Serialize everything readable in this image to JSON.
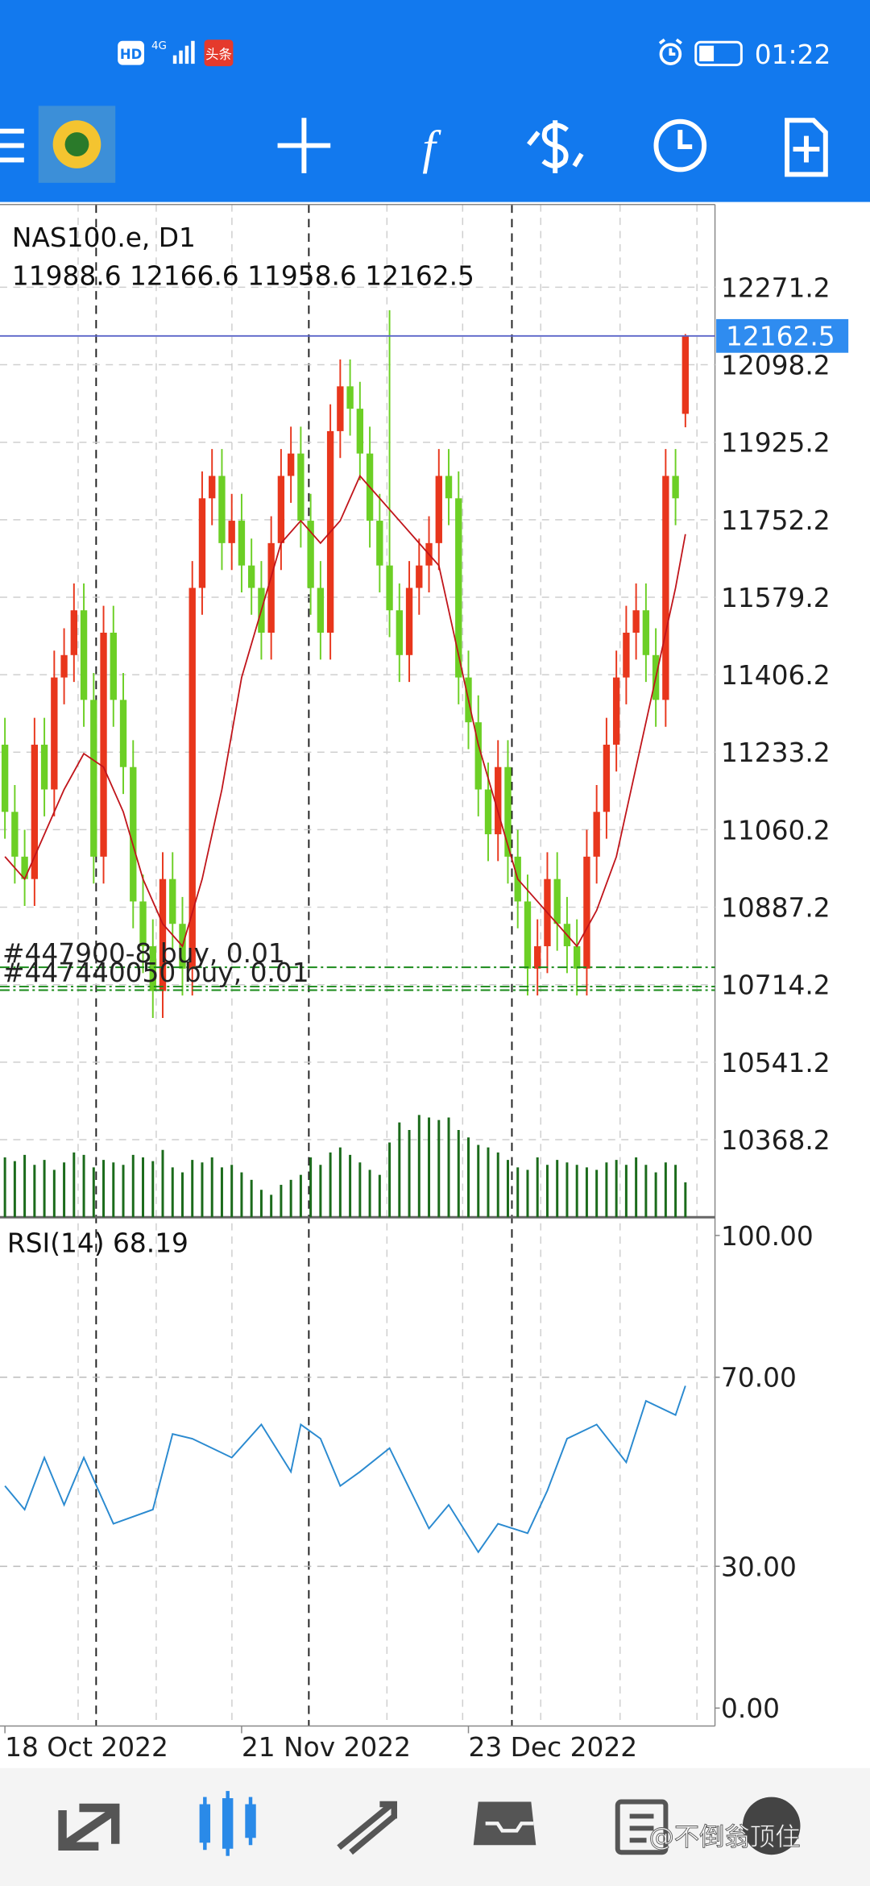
{
  "status_bar": {
    "hd": "HD",
    "network": "4G",
    "badge": "头条",
    "time": "01:22"
  },
  "chart_data": [
    {
      "type": "candlestick",
      "title": "NAS100.e, D1",
      "xlim": [
        -0.5,
        72
      ],
      "xticks": [
        {
          "value": 0,
          "label": "18 Oct 2022"
        },
        {
          "value": 24,
          "label": "21 Nov 2022"
        },
        {
          "value": 47,
          "label": "23 Dec 2022"
        }
      ],
      "ylim": [
        10195,
        12456
      ],
      "yticks": [
        12271.2,
        12098.2,
        11925.2,
        11752.2,
        11579.2,
        11406.2,
        11233.2,
        11060.2,
        10887.2,
        10714.2,
        10541.2,
        10368.2
      ],
      "grid": true,
      "up_color": "#e8361c",
      "down_color": "#6ccf25",
      "open": [
        11250,
        11100,
        11000,
        10950,
        11250,
        11150,
        11400,
        11450,
        11550,
        11350,
        11000,
        11500,
        11350,
        11200,
        10900,
        10800,
        10700,
        10950,
        10850,
        10750,
        11600,
        11800,
        11850,
        11700,
        11750,
        11650,
        11600,
        11500,
        11700,
        11850,
        11900,
        11750,
        11600,
        11500,
        11950,
        12050,
        12000,
        11900,
        11750,
        11650,
        11550,
        11450,
        11600,
        11650,
        11700,
        11850,
        11800,
        11400,
        11300,
        11150,
        11050,
        11200,
        11000,
        10900,
        10750,
        10800,
        10950,
        10850,
        10800,
        10750,
        11000,
        11100,
        11250,
        11400,
        11500,
        11550,
        11450,
        11350,
        11850,
        11988.6
      ],
      "high": [
        11310,
        11160,
        11060,
        11310,
        11310,
        11460,
        11510,
        11610,
        11610,
        11410,
        11560,
        11560,
        11410,
        11260,
        10960,
        10860,
        11010,
        11010,
        10910,
        11660,
        11860,
        11910,
        11910,
        11810,
        11810,
        11710,
        11660,
        11760,
        11910,
        11960,
        11960,
        11810,
        11660,
        12010,
        12110,
        12110,
        12060,
        11960,
        11810,
        12220,
        11610,
        11660,
        11710,
        11760,
        11910,
        11910,
        11860,
        11460,
        11360,
        11210,
        11260,
        11260,
        11060,
        10960,
        10860,
        11010,
        11010,
        10910,
        10860,
        11060,
        11160,
        11310,
        11460,
        11560,
        11610,
        11610,
        11510,
        11910,
        11910,
        12166.6
      ],
      "low": [
        11040,
        10940,
        10890,
        10890,
        11090,
        11090,
        11340,
        11390,
        11290,
        10940,
        10940,
        11290,
        11140,
        10840,
        10740,
        10640,
        10640,
        10790,
        10690,
        10690,
        11540,
        11740,
        11640,
        11640,
        11590,
        11540,
        11440,
        11440,
        11640,
        11790,
        11690,
        11540,
        11440,
        11440,
        11890,
        11940,
        11840,
        11690,
        11590,
        11490,
        11390,
        11390,
        11540,
        11590,
        11640,
        11740,
        11340,
        11240,
        11090,
        10990,
        10990,
        10940,
        10840,
        10690,
        10690,
        10740,
        10790,
        10740,
        10690,
        10690,
        10940,
        11040,
        11190,
        11340,
        11440,
        11390,
        11290,
        11290,
        11740,
        11958.6
      ],
      "close": [
        11100,
        11000,
        10950,
        11250,
        11150,
        11400,
        11450,
        11550,
        11350,
        11000,
        11500,
        11350,
        11200,
        10900,
        10800,
        10700,
        10950,
        10850,
        10750,
        11600,
        11800,
        11850,
        11700,
        11750,
        11650,
        11600,
        11500,
        11700,
        11850,
        11900,
        11750,
        11600,
        11500,
        11950,
        12050,
        12000,
        11900,
        11750,
        11650,
        11550,
        11450,
        11600,
        11650,
        11700,
        11850,
        11800,
        11400,
        11300,
        11150,
        11050,
        11200,
        11000,
        10900,
        10750,
        10800,
        10950,
        10850,
        10800,
        10750,
        11000,
        11100,
        11250,
        11400,
        11500,
        11550,
        11450,
        11350,
        11850,
        11800,
        12162.5
      ],
      "ma": {
        "color": "#c0141a",
        "x": [
          0,
          2,
          4,
          6,
          8,
          10,
          12,
          14,
          16,
          18,
          20,
          22,
          24,
          26,
          28,
          30,
          32,
          34,
          36,
          38,
          40,
          42,
          44,
          46,
          48,
          50,
          52,
          54,
          56,
          58,
          60,
          62,
          64,
          66,
          68,
          69
        ],
        "values": [
          11000,
          10950,
          11050,
          11150,
          11230,
          11200,
          11100,
          10950,
          10850,
          10800,
          10950,
          11150,
          11400,
          11550,
          11700,
          11750,
          11700,
          11750,
          11850,
          11800,
          11750,
          11700,
          11650,
          11450,
          11250,
          11100,
          10950,
          10900,
          10850,
          10800,
          10880,
          11000,
          11200,
          11400,
          11600,
          11720
        ]
      },
      "volume": {
        "color": "#1b6b1b",
        "values": [
          48,
          45,
          50,
          42,
          46,
          38,
          44,
          52,
          50,
          40,
          46,
          44,
          42,
          50,
          48,
          45,
          54,
          40,
          36,
          46,
          44,
          48,
          40,
          42,
          36,
          30,
          22,
          18,
          26,
          30,
          34,
          48,
          42,
          52,
          56,
          50,
          44,
          38,
          34,
          60,
          76,
          70,
          82,
          80,
          78,
          80,
          70,
          64,
          58,
          56,
          52,
          46,
          40,
          38,
          48,
          42,
          46,
          44,
          42,
          40,
          38,
          44,
          46,
          42,
          48,
          42,
          36,
          44,
          42,
          28
        ]
      },
      "price_line_color": "#5a64c8",
      "orders": {
        "color": "#1a8a1a",
        "labels": [
          "#447900-8 buy, 0.01",
          "#447440050 buy, 0.01",
          null
        ],
        "prices": [
          10753,
          10710,
          10702
        ]
      }
    },
    {
      "type": "line",
      "title": "RSI(14)",
      "xlim": [
        -0.5,
        72
      ],
      "ylim": [
        -3.8,
        103.6
      ],
      "yticks": [
        {
          "value": 100,
          "label": "100.00"
        },
        {
          "value": 70,
          "label": "70.00"
        },
        {
          "value": 30,
          "label": "30.00"
        },
        {
          "value": 0,
          "label": "0.00"
        }
      ],
      "grid_levels": [
        70,
        30
      ],
      "series": [
        {
          "color": "#2a8ad0",
          "x": [
            0,
            2,
            4,
            6,
            8,
            11,
            15,
            17,
            19,
            23,
            26,
            29,
            30,
            32,
            34,
            36,
            39,
            43,
            45,
            48,
            50,
            53,
            55,
            57,
            60,
            63,
            65,
            68,
            69
          ],
          "values": [
            47,
            42,
            53,
            43,
            53,
            39,
            42,
            58,
            57,
            53,
            60,
            50,
            60,
            57,
            47,
            50,
            55,
            38,
            43,
            33,
            39,
            37,
            46,
            57,
            60,
            52,
            65,
            62,
            68.19
          ]
        }
      ]
    }
  ],
  "watermark": "@不倒翁顶住"
}
